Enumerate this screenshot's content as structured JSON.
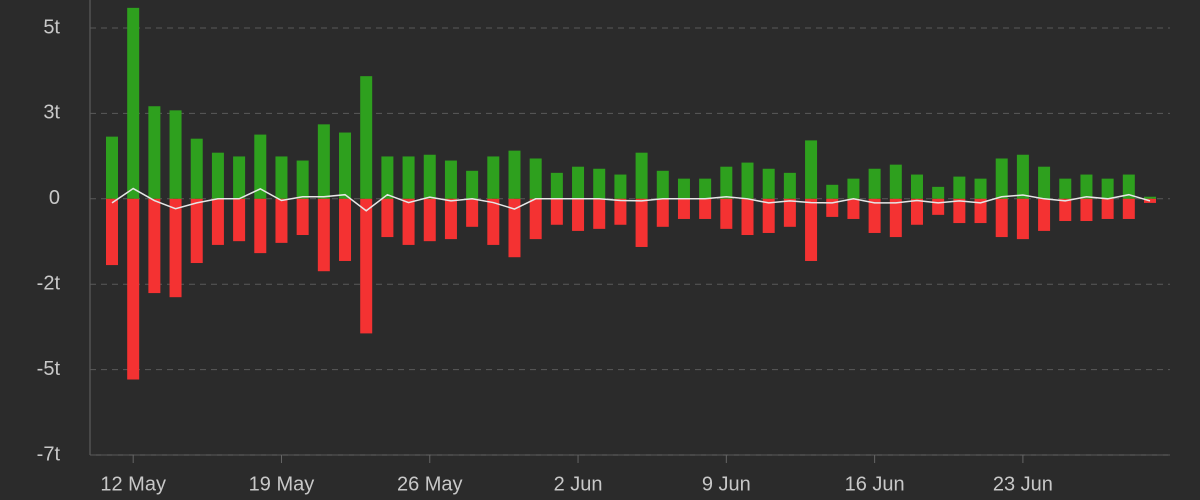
{
  "chart_data": {
    "type": "bar",
    "categories": [
      null,
      "12 May",
      null,
      null,
      null,
      null,
      null,
      null,
      "19 May",
      null,
      null,
      null,
      null,
      null,
      null,
      "26 May",
      null,
      null,
      null,
      null,
      null,
      null,
      "2 Jun",
      null,
      null,
      null,
      null,
      null,
      null,
      "9 Jun",
      null,
      null,
      null,
      null,
      null,
      null,
      "16 Jun",
      null,
      null,
      null,
      null,
      null,
      null,
      "23 Jun",
      null,
      null,
      null,
      null,
      null,
      null
    ],
    "series": [
      {
        "type": "bar",
        "color": "#2ea01e",
        "values": [
          1.82,
          5.59,
          2.71,
          2.59,
          1.76,
          1.35,
          1.24,
          1.88,
          1.24,
          1.12,
          2.18,
          1.94,
          3.59,
          1.24,
          1.24,
          1.29,
          1.12,
          0.82,
          1.24,
          1.41,
          1.18,
          0.76,
          0.94,
          0.88,
          0.71,
          1.35,
          0.82,
          0.59,
          0.59,
          0.94,
          1.06,
          0.88,
          0.76,
          1.71,
          0.41,
          0.59,
          0.88,
          1.0,
          0.71,
          0.35,
          0.65,
          0.59,
          1.18,
          1.29,
          0.94,
          0.59,
          0.71,
          0.59,
          0.71,
          0.06
        ]
      },
      {
        "type": "bar",
        "color": "#f43232",
        "values": [
          -1.94,
          -5.29,
          -2.76,
          -2.88,
          -1.88,
          -1.35,
          -1.24,
          -1.59,
          -1.29,
          -1.06,
          -2.12,
          -1.82,
          -3.94,
          -1.12,
          -1.35,
          -1.24,
          -1.18,
          -0.82,
          -1.35,
          -1.71,
          -1.18,
          -0.76,
          -0.94,
          -0.88,
          -0.76,
          -1.41,
          -0.82,
          -0.59,
          -0.59,
          -0.88,
          -1.06,
          -1.0,
          -0.82,
          -1.82,
          -0.53,
          -0.59,
          -1.0,
          -1.12,
          -0.76,
          -0.47,
          -0.71,
          -0.71,
          -1.12,
          -1.18,
          -0.94,
          -0.65,
          -0.65,
          -0.59,
          -0.59,
          -0.12
        ]
      },
      {
        "type": "line",
        "color": "#e6e6e6",
        "values": [
          -0.12,
          0.3,
          -0.05,
          -0.29,
          -0.12,
          0,
          0,
          0.29,
          -0.05,
          0.06,
          0.06,
          0.12,
          -0.35,
          0.12,
          -0.11,
          0.05,
          -0.06,
          0,
          -0.11,
          -0.3,
          0,
          0,
          0,
          0,
          -0.05,
          -0.06,
          0,
          0,
          0,
          0.06,
          0,
          -0.12,
          -0.06,
          -0.11,
          -0.12,
          0,
          -0.12,
          -0.12,
          -0.05,
          -0.12,
          -0.06,
          -0.12,
          0.06,
          0.11,
          0,
          -0.06,
          0.06,
          0,
          0.12,
          -0.06
        ]
      }
    ],
    "ylim": [
      -7.5,
      5.82
    ],
    "yticks": [
      {
        "value": 5,
        "label": "5t"
      },
      {
        "value": 2.5,
        "label": "3t"
      },
      0,
      {
        "value": -2.5,
        "label": "-2t"
      },
      {
        "value": -5,
        "label": "-5t"
      },
      {
        "value": -7.5,
        "label": "-7t"
      }
    ],
    "grid": true
  }
}
